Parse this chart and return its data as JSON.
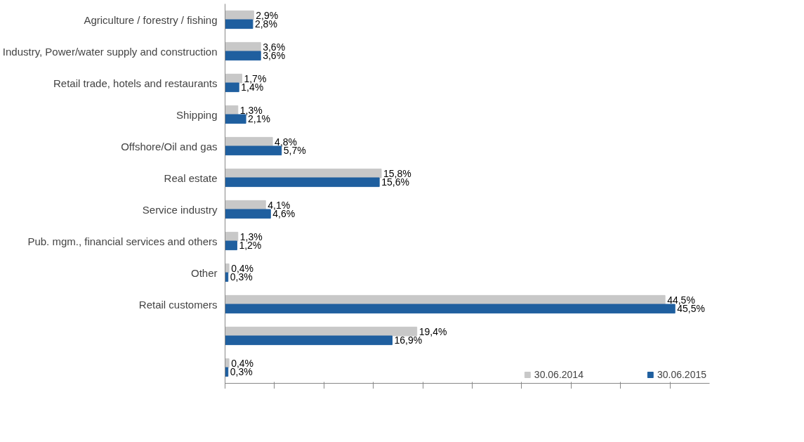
{
  "chart_data": {
    "type": "bar",
    "orientation": "horizontal",
    "categories": [
      "Agriculture / forestry / fishing",
      "Industry, Power/water supply and construction",
      "Retail trade, hotels and restaurants",
      "Shipping",
      "Offshore/Oil and gas",
      "Real estate",
      "Service industry",
      "Pub. mgm., financial services and others",
      "Other",
      "Retail customers",
      null,
      null
    ],
    "series": [
      {
        "name": "30.06.2014",
        "color": "#c8c8c8",
        "values": [
          2.9,
          3.6,
          1.7,
          1.3,
          4.8,
          15.8,
          4.1,
          1.3,
          0.4,
          44.5,
          19.4,
          0.4
        ],
        "value_labels": [
          "2,9%",
          "3,6%",
          "1,7%",
          "1,3%",
          "4,8%",
          "15,8%",
          "4,1%",
          "1,3%",
          "0,4%",
          "44,5%",
          "19,4%",
          "0,4%"
        ]
      },
      {
        "name": "30.06.2015",
        "color": "#1f5f9f",
        "values": [
          2.8,
          3.6,
          1.4,
          2.1,
          5.7,
          15.6,
          4.6,
          1.2,
          0.3,
          45.5,
          16.9,
          0.3
        ],
        "value_labels": [
          "2,8%",
          "3,6%",
          "1,4%",
          "2,1%",
          "5,7%",
          "15,6%",
          "4,6%",
          "1,2%",
          "0,3%",
          "45,5%",
          "16,9%",
          "0,3%"
        ]
      }
    ],
    "xlim": [
      0,
      49
    ],
    "xticks": [
      {
        "value": 0,
        "label": null
      },
      {
        "value": 5,
        "label": null
      },
      {
        "value": 10,
        "label": null
      },
      {
        "value": 15,
        "label": null
      },
      {
        "value": 20,
        "label": null
      },
      {
        "value": 25,
        "label": null
      },
      {
        "value": 30,
        "label": null
      },
      {
        "value": 35,
        "label": null
      },
      {
        "value": 40,
        "label": null
      },
      {
        "value": 45,
        "label": null
      }
    ],
    "tick_labels": "y",
    "grid": false,
    "legend": "bottom right"
  }
}
